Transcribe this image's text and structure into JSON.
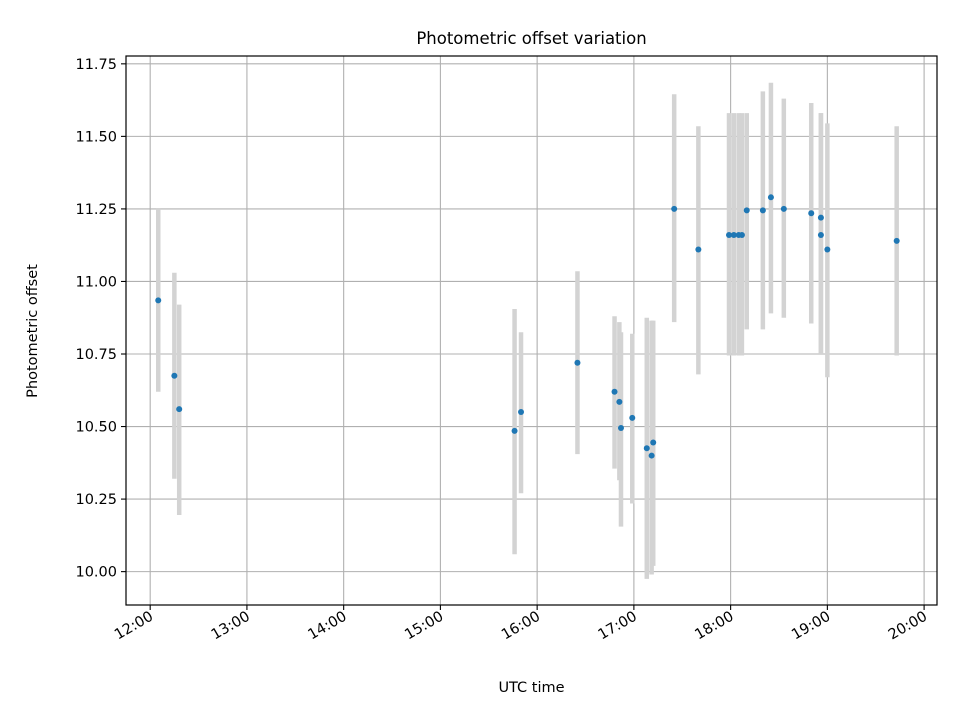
{
  "chart_data": {
    "type": "scatter",
    "title": "Photometric offset variation",
    "xlabel": "UTC time",
    "ylabel": "Photometric offset",
    "x_ticks": [
      "12:00",
      "13:00",
      "14:00",
      "15:00",
      "16:00",
      "17:00",
      "18:00",
      "19:00",
      "20:00"
    ],
    "y_ticks": [
      "10.00",
      "10.25",
      "10.50",
      "10.75",
      "11.00",
      "11.25",
      "11.50",
      "11.75"
    ],
    "xlim": [
      "11:45",
      "20:08"
    ],
    "ylim": [
      9.885,
      11.777
    ],
    "grid": true,
    "point_color": "#1f77b4",
    "errorbar_color": "#d3d3d3",
    "points": [
      {
        "t": "12:05",
        "y": 10.935,
        "lo": 10.62,
        "hi": 11.25
      },
      {
        "t": "12:15",
        "y": 10.675,
        "lo": 10.32,
        "hi": 11.03
      },
      {
        "t": "12:18",
        "y": 10.56,
        "lo": 10.195,
        "hi": 10.92
      },
      {
        "t": "15:46",
        "y": 10.485,
        "lo": 10.06,
        "hi": 10.905
      },
      {
        "t": "15:50",
        "y": 10.55,
        "lo": 10.27,
        "hi": 10.825
      },
      {
        "t": "16:25",
        "y": 10.72,
        "lo": 10.405,
        "hi": 11.035
      },
      {
        "t": "16:48",
        "y": 10.62,
        "lo": 10.355,
        "hi": 10.88
      },
      {
        "t": "16:51",
        "y": 10.585,
        "lo": 10.315,
        "hi": 10.86
      },
      {
        "t": "16:52",
        "y": 10.495,
        "lo": 10.155,
        "hi": 10.825
      },
      {
        "t": "16:59",
        "y": 10.53,
        "lo": 10.235,
        "hi": 10.82
      },
      {
        "t": "17:08",
        "y": 10.425,
        "lo": 9.975,
        "hi": 10.875
      },
      {
        "t": "17:11",
        "y": 10.4,
        "lo": 9.99,
        "hi": 10.865
      },
      {
        "t": "17:12",
        "y": 10.445,
        "lo": 10.02,
        "hi": 10.865
      },
      {
        "t": "17:25",
        "y": 11.25,
        "lo": 10.86,
        "hi": 11.645
      },
      {
        "t": "17:40",
        "y": 11.11,
        "lo": 10.68,
        "hi": 11.535
      },
      {
        "t": "17:59",
        "y": 11.16,
        "lo": 10.745,
        "hi": 11.58
      },
      {
        "t": "18:02",
        "y": 11.16,
        "lo": 10.745,
        "hi": 11.58
      },
      {
        "t": "18:05",
        "y": 11.16,
        "lo": 10.745,
        "hi": 11.58
      },
      {
        "t": "18:07",
        "y": 11.16,
        "lo": 10.745,
        "hi": 11.58
      },
      {
        "t": "18:10",
        "y": 11.245,
        "lo": 10.835,
        "hi": 11.58
      },
      {
        "t": "18:20",
        "y": 11.245,
        "lo": 10.835,
        "hi": 11.655
      },
      {
        "t": "18:25",
        "y": 11.29,
        "lo": 10.89,
        "hi": 11.685
      },
      {
        "t": "18:33",
        "y": 11.25,
        "lo": 10.875,
        "hi": 11.63
      },
      {
        "t": "18:50",
        "y": 11.235,
        "lo": 10.855,
        "hi": 11.615
      },
      {
        "t": "18:56",
        "y": 11.22,
        "lo": 10.75,
        "hi": 11.58
      },
      {
        "t": "18:56",
        "y": 11.16,
        "lo": 10.75,
        "hi": 11.58
      },
      {
        "t": "19:00",
        "y": 11.11,
        "lo": 10.67,
        "hi": 11.545
      },
      {
        "t": "19:43",
        "y": 11.14,
        "lo": 10.745,
        "hi": 11.535
      }
    ]
  }
}
